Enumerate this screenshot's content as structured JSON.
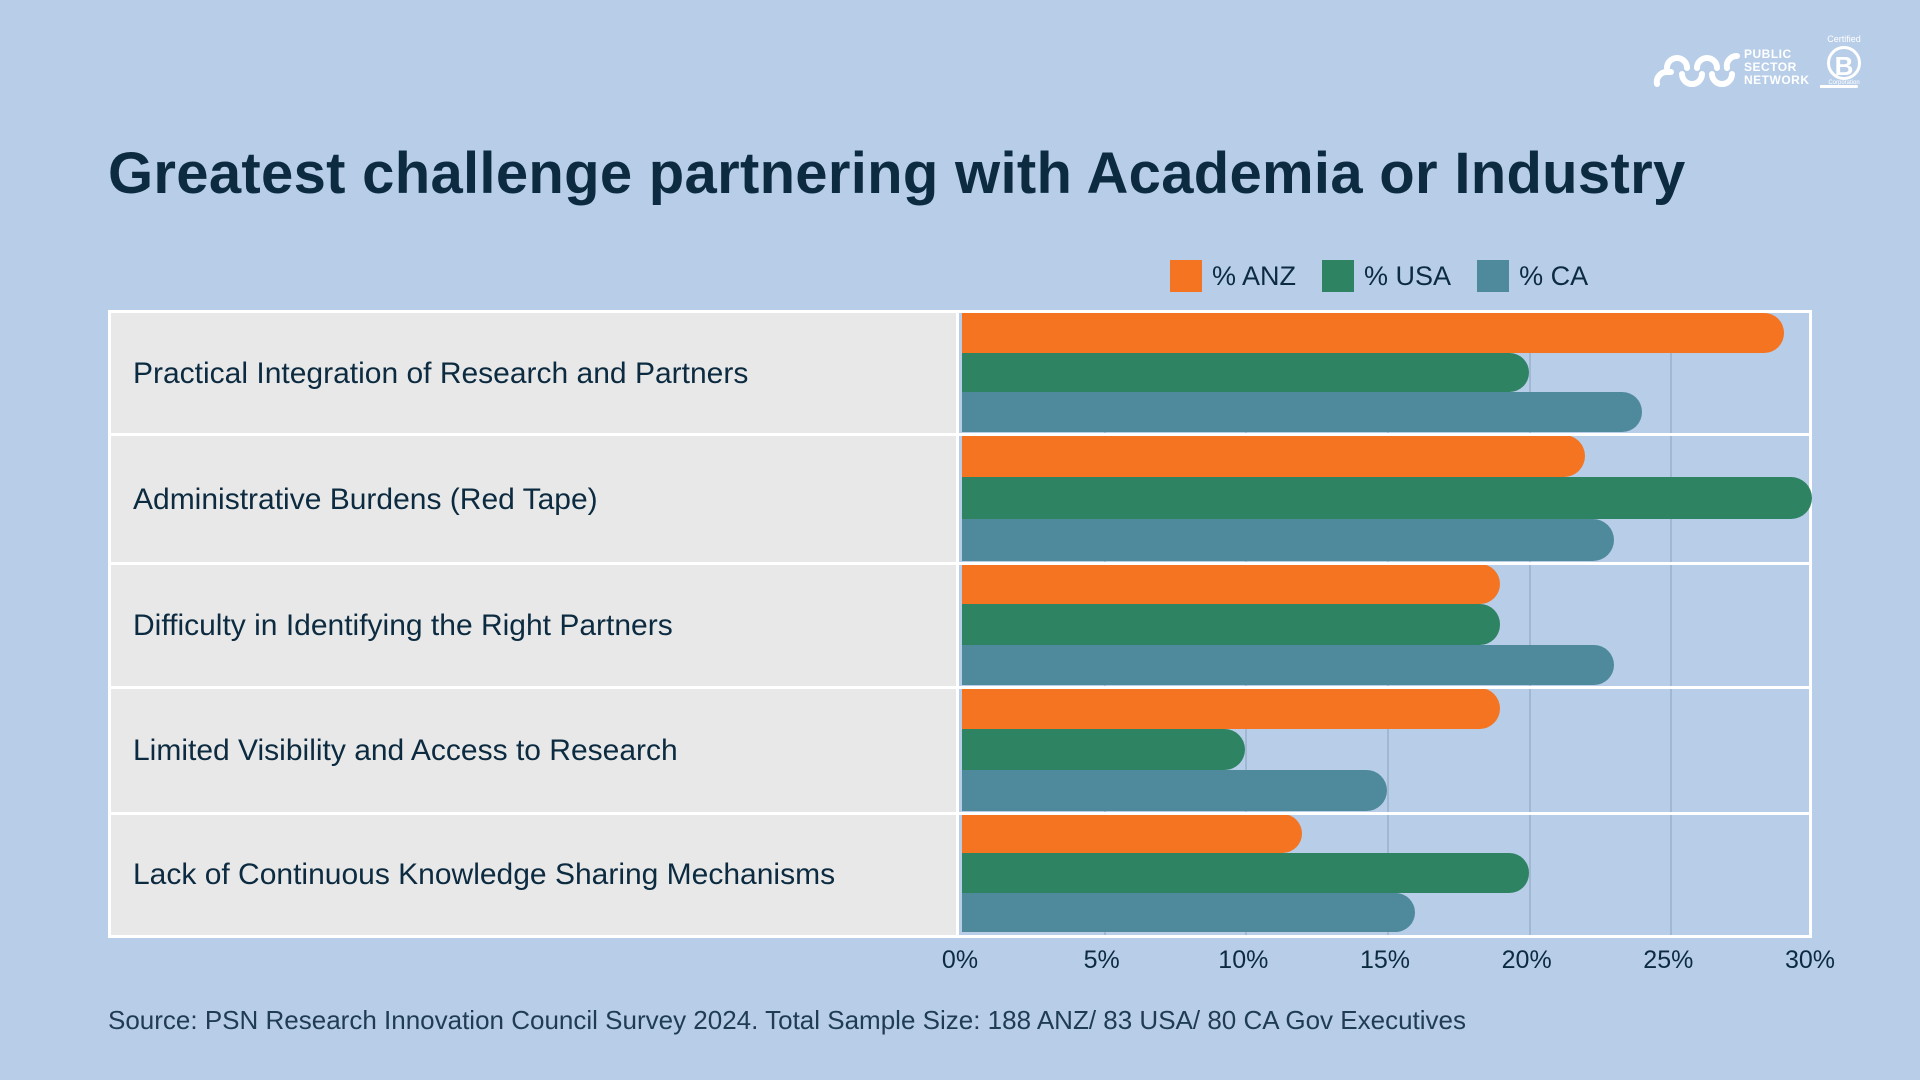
{
  "logo": {
    "org_line1": "PUBLIC",
    "org_line2": "SECTOR",
    "org_line3": "NETWORK",
    "bcorp_top": "Certified",
    "bcorp_letter": "B",
    "bcorp_bottom": "Corporation"
  },
  "title": "Greatest challenge partnering with Academia or Industry",
  "legend": [
    {
      "label": "% ANZ",
      "color": "#f47421"
    },
    {
      "label": "% USA",
      "color": "#2e8462"
    },
    {
      "label": "% CA",
      "color": "#4f8a9c"
    }
  ],
  "source": "Source: PSN Research Innovation Council Survey 2024. Total Sample Size: 188 ANZ/ 83 USA/ 80 CA Gov Executives",
  "chart_data": {
    "type": "bar",
    "orientation": "horizontal",
    "title": "Greatest challenge partnering with Academia or Industry",
    "xlabel": "",
    "ylabel": "",
    "xlim": [
      0,
      30
    ],
    "x_ticks": [
      "0%",
      "5%",
      "10%",
      "15%",
      "20%",
      "25%",
      "30%"
    ],
    "grid": true,
    "legend_position": "top-right",
    "categories": [
      "Practical Integration of Research and Partners",
      "Administrative Burdens (Red Tape)",
      "Difficulty in Identifying the Right Partners",
      "Limited Visibility and Access to Research",
      "Lack of Continuous Knowledge Sharing Mechanisms"
    ],
    "series": [
      {
        "name": "% ANZ",
        "color": "#f47421",
        "values": [
          29,
          22,
          19,
          19,
          12
        ]
      },
      {
        "name": "% USA",
        "color": "#2e8462",
        "values": [
          20,
          30,
          19,
          10,
          20
        ]
      },
      {
        "name": "% CA",
        "color": "#4f8a9c",
        "values": [
          24,
          23,
          23,
          15,
          16
        ]
      }
    ],
    "annotations": [
      "Source: PSN Research Innovation Council Survey 2024. Total Sample Size: 188 ANZ/ 83 USA/ 80 CA Gov Executives"
    ]
  }
}
